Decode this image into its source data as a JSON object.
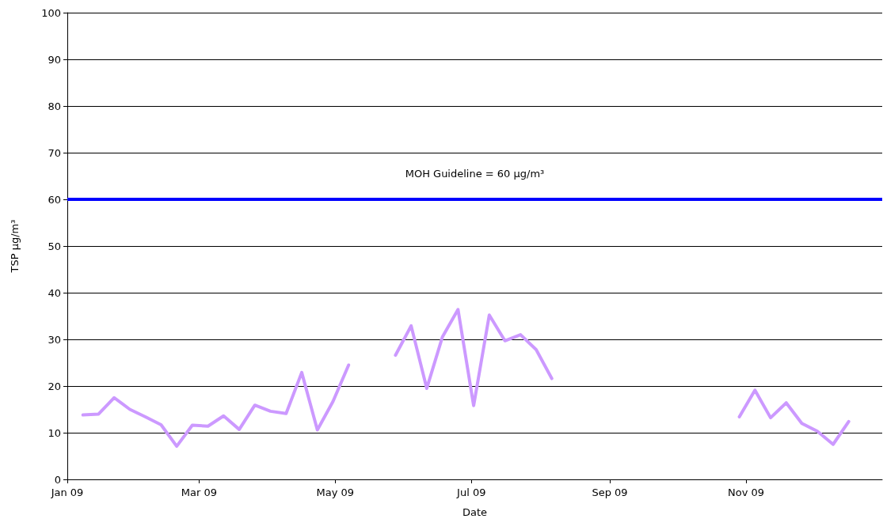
{
  "chart_data": {
    "type": "line",
    "xlabel": "Date",
    "ylabel": "TSP µg/m³",
    "x": [
      "2009-01-08",
      "2009-01-15",
      "2009-01-22",
      "2009-01-29",
      "2009-02-05",
      "2009-02-12",
      "2009-02-19",
      "2009-02-26",
      "2009-03-05",
      "2009-03-12",
      "2009-03-19",
      "2009-03-26",
      "2009-04-02",
      "2009-04-09",
      "2009-04-16",
      "2009-04-23",
      "2009-04-30",
      "2009-05-07",
      "2009-05-17",
      "2009-05-28",
      "2009-06-04",
      "2009-06-11",
      "2009-06-18",
      "2009-06-25",
      "2009-07-02",
      "2009-07-09",
      "2009-07-16",
      "2009-07-23",
      "2009-07-30",
      "2009-08-06",
      "2009-08-20",
      "2009-10-29",
      "2009-11-05",
      "2009-11-12",
      "2009-11-19",
      "2009-11-26",
      "2009-12-03",
      "2009-12-10",
      "2009-12-17"
    ],
    "series": [
      {
        "color": "#cc99ff",
        "values": [
          13.8,
          14.0,
          17.5,
          15.0,
          13.4,
          11.7,
          7.1,
          11.6,
          11.4,
          13.6,
          10.7,
          15.9,
          14.6,
          14.1,
          22.9,
          10.6,
          16.7,
          24.5,
          null,
          26.6,
          32.9,
          19.5,
          30.5,
          36.4,
          15.8,
          35.2,
          29.7,
          31.0,
          27.8,
          21.6,
          null,
          13.4,
          19.1,
          13.2,
          16.4,
          12.0,
          10.3,
          7.5,
          12.4
        ]
      }
    ],
    "xlim": [
      "2009-01-01",
      "2010-01-01"
    ],
    "xticks": [
      {
        "value": "2009-01-01",
        "label": "Jan 09"
      },
      {
        "value": "2009-03-01",
        "label": "Mar 09"
      },
      {
        "value": "2009-05-01",
        "label": "May 09"
      },
      {
        "value": "2009-07-01",
        "label": "Jul 09"
      },
      {
        "value": "2009-09-01",
        "label": "Sep 09"
      },
      {
        "value": "2009-11-01",
        "label": "Nov 09"
      }
    ],
    "ylim": [
      0,
      100
    ],
    "yticks": [
      0,
      10,
      20,
      30,
      40,
      50,
      60,
      70,
      80,
      90,
      100
    ],
    "grid": "y",
    "marker": "none",
    "line_style": "solid",
    "ref_lines": [
      {
        "axis": "y",
        "value": 60,
        "label": "MOH Guideline = 60 µg/m³",
        "color": "#0000ff",
        "line_style": "solid"
      }
    ]
  }
}
